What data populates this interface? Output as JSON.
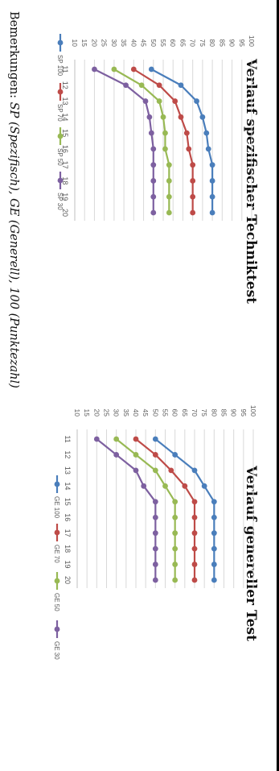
{
  "remarks": {
    "prefix": "Bemerkungen: ",
    "text": "SP (Spezifisch), GE (Generell), 100 (Punktezahl)"
  },
  "chart_data": [
    {
      "type": "line",
      "title": "Verlauf spezifischer Techniktest",
      "xlabel": "",
      "ylabel": "",
      "x": [
        11,
        12,
        13,
        14,
        15,
        16,
        17,
        18,
        19,
        20
      ],
      "yticks": [
        10,
        15,
        20,
        25,
        30,
        35,
        40,
        45,
        50,
        55,
        60,
        65,
        70,
        75,
        80,
        85,
        90,
        95,
        100
      ],
      "ylim": [
        10,
        100
      ],
      "grid": true,
      "legend": "bottom",
      "series": [
        {
          "name": "SP 100",
          "color": "#4a7ebb",
          "values": [
            49,
            64,
            72,
            75,
            77,
            78,
            80,
            80,
            80,
            80
          ]
        },
        {
          "name": "SP 70",
          "color": "#be4b48",
          "values": [
            40,
            53,
            61,
            64,
            67,
            68,
            70,
            70,
            70,
            70
          ]
        },
        {
          "name": "SP 50",
          "color": "#98b954",
          "values": [
            30,
            44,
            53,
            55,
            56,
            56,
            58,
            58,
            58,
            58
          ]
        },
        {
          "name": "SP 30",
          "color": "#7d60a0",
          "values": [
            20,
            36,
            46,
            48,
            49,
            50,
            50,
            50,
            50,
            50
          ]
        }
      ]
    },
    {
      "type": "line",
      "title": "Verlauf genereller Test",
      "xlabel": "",
      "ylabel": "",
      "x": [
        11,
        12,
        13,
        14,
        15,
        16,
        17,
        18,
        19,
        20
      ],
      "yticks": [
        10,
        15,
        20,
        25,
        30,
        35,
        40,
        45,
        50,
        55,
        60,
        65,
        70,
        75,
        80,
        85,
        90,
        95,
        100
      ],
      "ylim": [
        10,
        100
      ],
      "grid": true,
      "legend": "bottom",
      "series": [
        {
          "name": "GE 100",
          "color": "#4a7ebb",
          "values": [
            50,
            60,
            70,
            75,
            80,
            80,
            80,
            80,
            80,
            80
          ]
        },
        {
          "name": "GE 70",
          "color": "#be4b48",
          "values": [
            40,
            50,
            58,
            65,
            70,
            70,
            70,
            70,
            70,
            70
          ]
        },
        {
          "name": "GE 50",
          "color": "#98b954",
          "values": [
            30,
            40,
            50,
            55,
            60,
            60,
            60,
            60,
            60,
            60
          ]
        },
        {
          "name": "GE 30",
          "color": "#7d60a0",
          "values": [
            20,
            30,
            40,
            44,
            50,
            50,
            50,
            50,
            50,
            50
          ]
        }
      ]
    }
  ]
}
